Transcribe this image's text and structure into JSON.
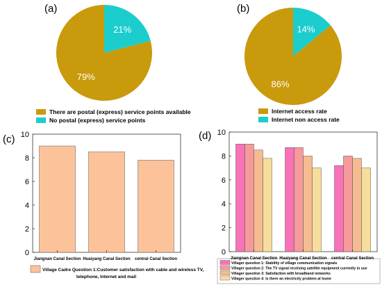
{
  "chart_data": [
    {
      "panel": "(a)",
      "type": "pie",
      "labels": [
        "There are postal (express) service points available",
        "No postal (express) service points"
      ],
      "values": [
        79,
        21
      ],
      "value_labels": [
        "79%",
        "21%"
      ],
      "colors": [
        "#c99a0c",
        "#1ccdcd"
      ],
      "legend_placement": "bottom"
    },
    {
      "panel": "(b)",
      "type": "pie",
      "labels": [
        "Internet access rate",
        "Internet non access rate"
      ],
      "values": [
        86,
        14
      ],
      "value_labels": [
        "86%",
        "14%"
      ],
      "colors": [
        "#c99a0c",
        "#1ccdcd"
      ],
      "legend_placement": "bottom"
    },
    {
      "panel": "(c)",
      "type": "bar",
      "categories": [
        "Jiangnan Canal Section",
        "Huaiyang Canal Section",
        "central Canal Section"
      ],
      "series": [
        {
          "name": "Village Cadre Question 1:Customer satisfaction with cable and wireless TV, telephone, Internet and mail",
          "values": [
            9.0,
            8.5,
            7.8
          ]
        }
      ],
      "legend_lines": [
        "Village Cadre Question 1:Customer satisfaction with cable and wireless TV,",
        "telephone, Internet and mail"
      ],
      "ylim": [
        0,
        10
      ],
      "yticks": [
        "0",
        "2",
        "4",
        "6",
        "8",
        "10"
      ],
      "colors": [
        "#fcc39b"
      ],
      "grid": false,
      "legend_placement": "bottom"
    },
    {
      "panel": "(d)",
      "type": "bar",
      "categories": [
        "Jiangnan Canal Section",
        "Huaiyang Canal Section",
        "central Canal Section"
      ],
      "series": [
        {
          "name": "Villager question 1:   Stability of village communication signals",
          "values": [
            9.0,
            8.7,
            7.2
          ]
        },
        {
          "name": "Villager question 2:   The TV signal receiving satellite equipment currently in use",
          "values": [
            9.0,
            8.7,
            8.0
          ]
        },
        {
          "name": "Villager question 3:   Satisfaction with broadband networks",
          "values": [
            8.5,
            8.0,
            7.8
          ]
        },
        {
          "name": "Villager question 4:   Is there an electricity problem at home",
          "values": [
            7.8,
            7.0,
            7.0
          ]
        }
      ],
      "ylim": [
        0,
        10
      ],
      "yticks": [
        "0",
        "2",
        "4",
        "6",
        "8",
        "10"
      ],
      "colors": [
        "#f972b8",
        "#f79a9b",
        "#f4bc90",
        "#f7dd9c"
      ],
      "grid": false,
      "legend_placement": "bottom"
    }
  ]
}
